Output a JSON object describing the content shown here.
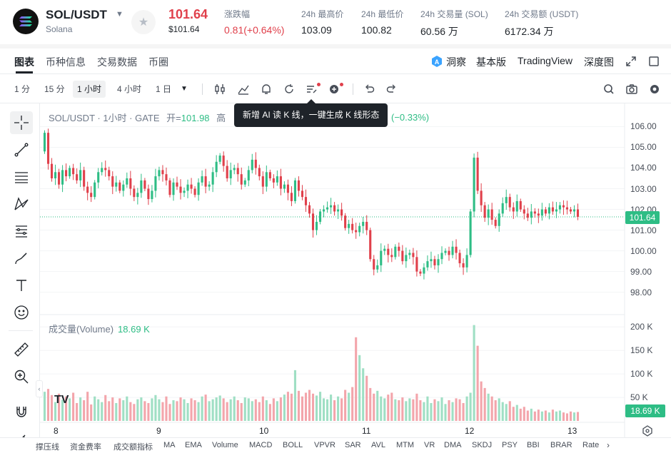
{
  "header": {
    "symbol": "SOL/USDT",
    "coin_name": "Solana",
    "price": "101.64",
    "price_usd": "$101.64",
    "change_label": "涨跌幅",
    "change_value": "0.81(+0.64%)",
    "high_label": "24h 最高价",
    "high_value": "103.09",
    "low_label": "24h 最低价",
    "low_value": "100.82",
    "vol_sol_label": "24h 交易量 (SOL)",
    "vol_sol_value": "60.56 万",
    "vol_usdt_label": "24h 交易额 (USDT)",
    "vol_usdt_value": "6172.34 万"
  },
  "tabs": {
    "left": [
      "图表",
      "币种信息",
      "交易数据",
      "币圈"
    ],
    "insight": "洞察",
    "basic": "基本版",
    "tradingview": "TradingView",
    "depth": "深度图"
  },
  "toolbar": {
    "intervals": [
      "1 分",
      "15 分",
      "1 小时",
      "4 小时",
      "1 日"
    ],
    "active_interval": "1 小时"
  },
  "chart": {
    "legend_title": "SOL/USDT · 1小时 · GATE",
    "legend_open_label": "开=",
    "legend_open_value": "101.98",
    "legend_high_label": "高",
    "change_tail": "(−0.33%)",
    "tooltip": "新增 AI 读 K 线，一键生成 K 线形态",
    "vol_legend_label": "成交量(Volume)",
    "vol_legend_value": "18.69 K",
    "price_tag": "101.64",
    "vol_tag": "18.69 K",
    "tv_logo": "TV"
  },
  "chart_data": {
    "type": "candlestick",
    "y_ticks": [
      "106.00",
      "105.00",
      "104.00",
      "103.00",
      "102.00",
      "101.00",
      "100.00",
      "99.00",
      "98.00"
    ],
    "y_tick_values": [
      106,
      105,
      104,
      103,
      102,
      101,
      100,
      99,
      98
    ],
    "ylim": [
      97.3,
      106.6
    ],
    "vol_ticks": [
      "200 K",
      "150 K",
      "100 K",
      "50 K"
    ],
    "vol_tick_values": [
      200,
      150,
      100,
      50
    ],
    "vol_lim": [
      0,
      205
    ],
    "x_ticks": [
      "8",
      "9",
      "10",
      "11",
      "12",
      "13"
    ],
    "last_price": 101.64,
    "closes": [
      105.7,
      104.2,
      103.5,
      103.8,
      103.2,
      103.9,
      103.6,
      104.0,
      103.7,
      103.4,
      103.9,
      103.1,
      102.8,
      102.6,
      103.3,
      103.8,
      104.0,
      103.9,
      103.6,
      103.1,
      103.3,
      102.9,
      103.2,
      103.5,
      103.0,
      102.6,
      102.8,
      103.4,
      103.0,
      102.5,
      102.9,
      103.6,
      103.9,
      103.7,
      103.4,
      102.7,
      103.3,
      103.1,
      102.8,
      102.9,
      103.2,
      103.0,
      102.7,
      103.3,
      103.6,
      103.1,
      103.2,
      103.8,
      104.3,
      104.6,
      104.1,
      103.5,
      103.9,
      104.0,
      103.7,
      103.2,
      103.4,
      103.9,
      104.4,
      104.0,
      103.6,
      103.1,
      103.8,
      103.5,
      103.3,
      103.6,
      103.0,
      103.2,
      102.8,
      102.4,
      103.4,
      102.9,
      102.6,
      102.2,
      101.8,
      101.0,
      101.4,
      101.9,
      102.0,
      102.1,
      102.2,
      101.9,
      102.0,
      101.7,
      101.1,
      101.3,
      101.0,
      100.9,
      101.2,
      101.4,
      101.0,
      99.6,
      99.1,
      99.3,
      100.0,
      100.1,
      99.8,
      99.7,
      100.2,
      100.0,
      99.5,
      99.8,
      99.9,
      99.7,
      99.0,
      98.9,
      99.2,
      99.5,
      99.6,
      99.3,
      99.6,
      99.9,
      100.0,
      99.8,
      100.2,
      99.9,
      99.4,
      99.2,
      99.8,
      101.9,
      104.5,
      102.9,
      102.2,
      101.6,
      102.0,
      101.5,
      101.2,
      101.8,
      102.3,
      102.6,
      102.1,
      101.9,
      102.4,
      102.0,
      101.8,
      101.6,
      101.9,
      101.8,
      101.7,
      102.0,
      101.8,
      102.1,
      101.9,
      102.0,
      102.2,
      102.1,
      102.0,
      101.9,
      102.0,
      101.64
    ],
    "volumes": [
      62,
      68,
      55,
      40,
      58,
      45,
      52,
      48,
      60,
      38,
      50,
      44,
      62,
      35,
      52,
      46,
      40,
      55,
      42,
      50,
      38,
      48,
      44,
      52,
      40,
      36,
      46,
      50,
      42,
      38,
      48,
      55,
      46,
      40,
      52,
      36,
      44,
      42,
      50,
      46,
      38,
      48,
      44,
      40,
      52,
      56,
      42,
      46,
      50,
      54,
      48,
      40,
      46,
      52,
      44,
      38,
      50,
      48,
      42,
      46,
      40,
      52,
      44,
      36,
      48,
      42,
      50,
      56,
      62,
      58,
      108,
      64,
      52,
      60,
      66,
      58,
      54,
      62,
      48,
      46,
      56,
      44,
      52,
      48,
      66,
      60,
      72,
      178,
      140,
      112,
      96,
      70,
      58,
      64,
      52,
      48,
      56,
      60,
      46,
      44,
      50,
      42,
      48,
      46,
      58,
      44,
      40,
      52,
      38,
      46,
      42,
      50,
      36,
      44,
      40,
      48,
      46,
      38,
      52,
      60,
      204,
      160,
      84,
      70,
      58,
      52,
      44,
      48,
      40,
      36,
      42,
      30,
      34,
      26,
      30,
      22,
      26,
      20,
      24,
      20,
      22,
      18,
      24,
      20,
      22,
      18,
      16,
      20,
      18,
      19
    ]
  },
  "indicators": [
    "撑压线",
    "资金费率",
    "成交额指标",
    "MA",
    "EMA",
    "Volume",
    "MACD",
    "BOLL",
    "VPVR",
    "SAR",
    "AVL",
    "MTM",
    "VR",
    "DMA",
    "SKDJ",
    "PSY",
    "BBI",
    "BRAR",
    "Rate"
  ],
  "colors": {
    "up": "#2ebd85",
    "down": "#e0404b",
    "vol_up": "#9fdfc4",
    "vol_down": "#f3a5ab"
  }
}
